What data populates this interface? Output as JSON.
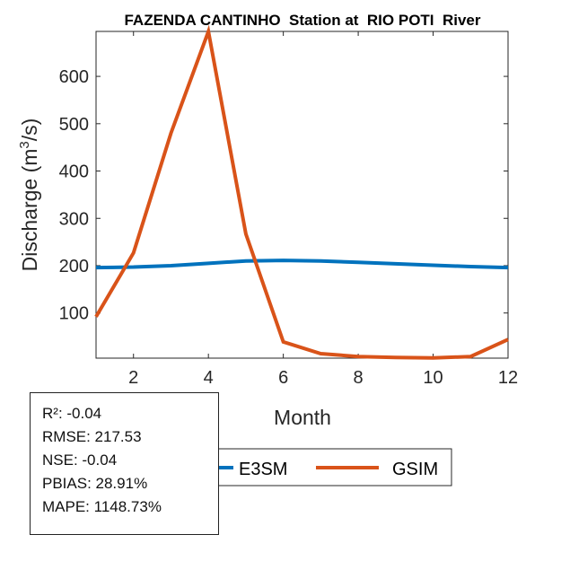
{
  "chart_data": {
    "type": "line",
    "title": "FAZENDA CANTINHO  Station at  RIO POTI  River",
    "xlabel": "Month",
    "ylabel_prefix": "Discharge (m",
    "ylabel_sup": "3",
    "ylabel_suffix": "/s)",
    "x": [
      1,
      2,
      3,
      4,
      5,
      6,
      7,
      8,
      9,
      10,
      11,
      12
    ],
    "xlim": [
      1,
      12
    ],
    "ylim": [
      4.6,
      695
    ],
    "xticks": [
      2,
      4,
      6,
      8,
      10,
      12
    ],
    "yticks": [
      100,
      200,
      300,
      400,
      500,
      600
    ],
    "grid": false,
    "legend_placement": "bottom-outside",
    "series": [
      {
        "name": "E3SM",
        "color": "#0072BD",
        "values": [
          196,
          197,
          200,
          205,
          210,
          211,
          210,
          207,
          204,
          201,
          198,
          196
        ]
      },
      {
        "name": "GSIM",
        "color": "#D95319",
        "values": [
          92,
          227,
          480,
          695,
          267,
          39,
          14,
          8,
          6,
          5,
          8,
          44
        ]
      }
    ]
  },
  "stats": {
    "r2": "R²: -0.04",
    "rmse": "RMSE: 217.53",
    "nse": "NSE: -0.04",
    "pbias": "PBIAS: 28.91%",
    "mape": "MAPE: 1148.73%"
  }
}
